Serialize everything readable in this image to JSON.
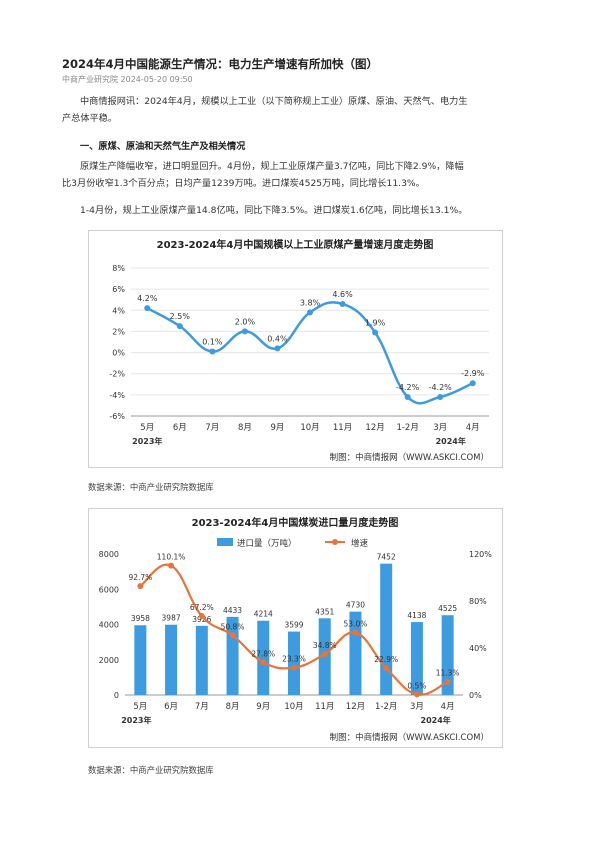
{
  "article": {
    "title": "2024年4月中国能源生产情况：电力生产增速有所加快（图）",
    "meta": "中商产业研究院 2024-05-20 09:50",
    "intro_line1": "中商情报网讯：2024年4月，规模以上工业（以下简称规上工业）原煤、原油、天然气、电力生",
    "intro_line2": "产总体平稳。",
    "section_heading": "一、原煤、原油和天然气生产及相关情况",
    "p2_line1": "原煤生产降幅收窄，进口明显回升。4月份，规上工业原煤产量3.7亿吨，同比下降2.9%，降幅",
    "p2_line2": "比3月份收窄1.3个百分点；日均产量1239万吨。进口煤炭4525万吨，同比增长11.3%。",
    "p3": "1-4月份，规上工业原煤产量14.8亿吨，同比下降3.5%。进口煤炭1.6亿吨，同比增长13.1%。",
    "source1": "数据来源：中商产业研究院数据库",
    "source2": "数据来源：中商产业研究院数据库"
  },
  "colors": {
    "line": "#3d9be0",
    "bar": "#3d9be0",
    "orange": "#e8743b"
  },
  "chart_data": [
    {
      "type": "line",
      "title": "2023-2024年4月中国规模以上工业原煤产量增速月度走势图",
      "categories": [
        "5月",
        "6月",
        "7月",
        "8月",
        "9月",
        "10月",
        "11月",
        "12月",
        "1-2月",
        "3月",
        "4月"
      ],
      "year_labels": [
        "2023年",
        "2024年"
      ],
      "values": [
        4.2,
        2.5,
        0.1,
        2.0,
        0.4,
        3.8,
        4.6,
        1.9,
        -4.2,
        -4.2,
        -2.9
      ],
      "data_labels": [
        "4.2%",
        "2.5%",
        "0.1%",
        "2.0%",
        "0.4%",
        "3.8%",
        "4.6%",
        "1.9%",
        "-4.2%",
        "-4.2%",
        "-2.9%"
      ],
      "yticks": [
        "8%",
        "6%",
        "4%",
        "2%",
        "0%",
        "-2%",
        "-4%",
        "-6%"
      ],
      "ylim": [
        -6,
        8
      ],
      "credit": "制图：中商情报网（WWW.ASKCI.COM）"
    },
    {
      "type": "bar",
      "title": "2023-2024年4月中国煤炭进口量月度走势图",
      "categories": [
        "5月",
        "6月",
        "7月",
        "8月",
        "9月",
        "10月",
        "11月",
        "12月",
        "1-2月",
        "3月",
        "4月"
      ],
      "year_labels": [
        "2023年",
        "2024年"
      ],
      "series": [
        {
          "name": "进口量（万吨）",
          "values": [
            3958,
            3987,
            3926,
            4433,
            4214,
            3599,
            4351,
            4730,
            7452,
            4138,
            4525
          ]
        },
        {
          "name": "增速",
          "values": [
            92.7,
            110.1,
            67.2,
            50.8,
            27.8,
            23.3,
            34.8,
            53.0,
            22.9,
            0.5,
            11.3
          ],
          "labels": [
            "92.7%",
            "110.1%",
            "67.2%",
            "50.8%",
            "27.8%",
            "23.3%",
            "34.8%",
            "53.0%",
            "22.9%",
            "0.5%",
            "11.3%"
          ]
        }
      ],
      "bar_labels": [
        "3958",
        "3987",
        "3926",
        "4433",
        "4214",
        "3599",
        "4351",
        "4730",
        "7452",
        "4138",
        "4525"
      ],
      "yticks_left": [
        "8000",
        "6000",
        "4000",
        "2000",
        "0"
      ],
      "yticks_right": [
        "120%",
        "80%",
        "40%",
        "0%"
      ],
      "ylim_left": [
        0,
        8000
      ],
      "ylim_right": [
        0,
        120
      ],
      "credit": "制图：中商情报网（WWW.ASKCI.COM）"
    }
  ]
}
